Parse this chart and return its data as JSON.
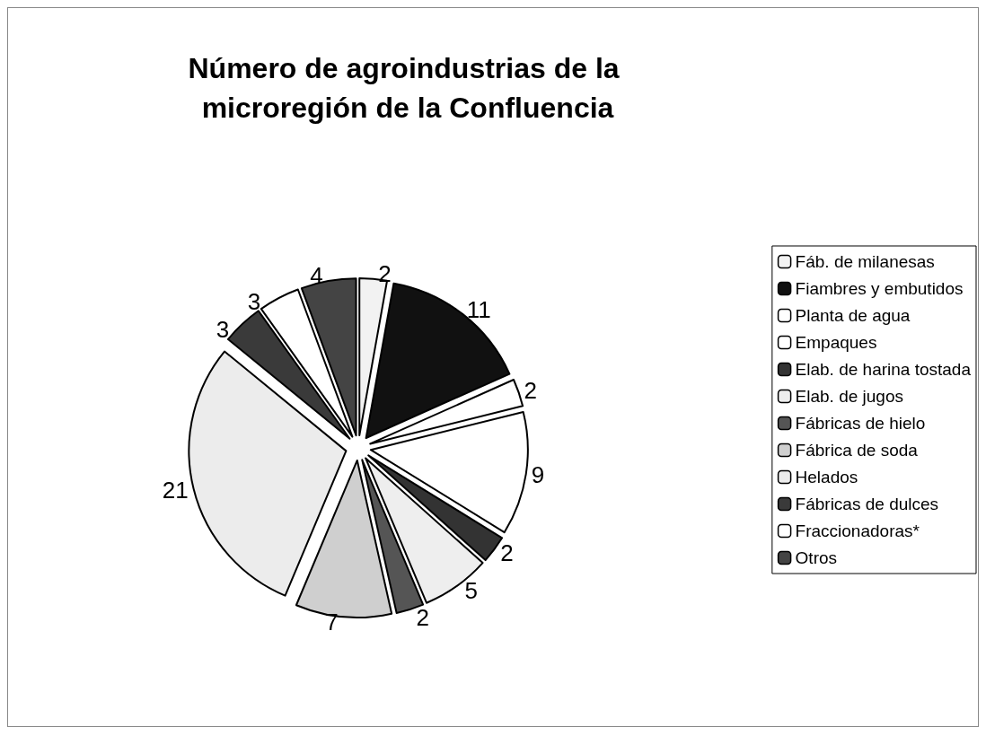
{
  "chart_data": {
    "type": "pie",
    "title": "Número de agroindustrias de la microregión de la Confluencia",
    "categories": [
      "Fáb. de milanesas",
      "Fiambres y embutidos",
      "Planta de agua",
      "Empaques",
      "Elab. de harina tostada",
      "Elab. de jugos",
      "Fábricas de hielo",
      "Fábrica de soda",
      "Helados",
      "Fábricas de dulces",
      "Fraccionadoras*",
      "Otros"
    ],
    "values": [
      2,
      11,
      2,
      9,
      2,
      5,
      2,
      7,
      21,
      3,
      3,
      4
    ],
    "colors": [
      "#f2f2f2",
      "#111111",
      "#ffffff",
      "#ffffff",
      "#333333",
      "#eeeeee",
      "#555555",
      "#cfcfcf",
      "#ececec",
      "#3a3a3a",
      "#ffffff",
      "#444444"
    ],
    "data_labels": true,
    "legend": "right"
  }
}
